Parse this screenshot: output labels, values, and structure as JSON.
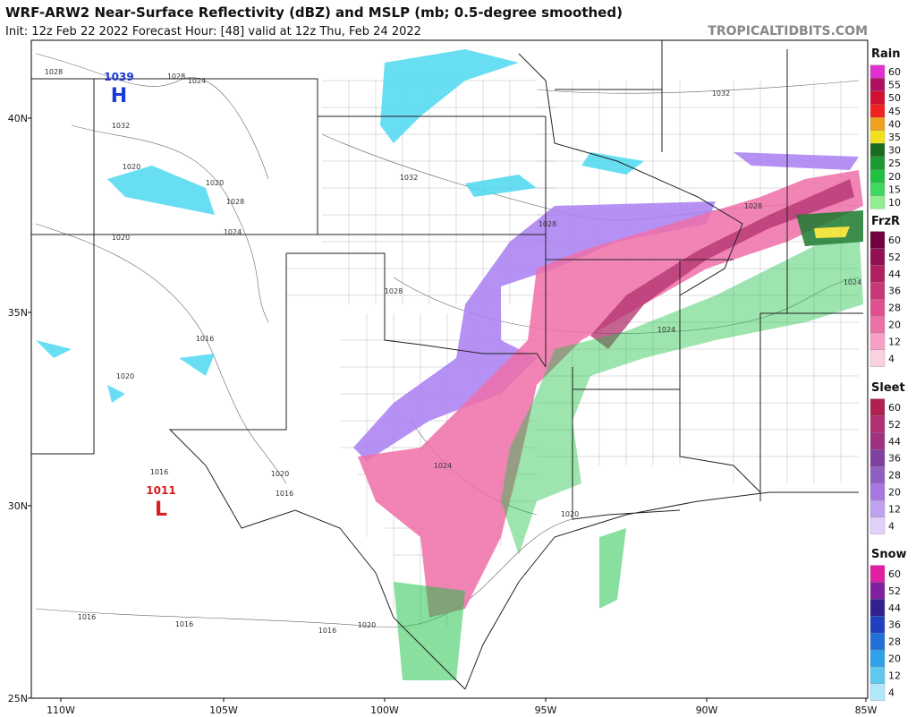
{
  "header": {
    "title": "WRF-ARW2 Near-Surface Reflectivity (dBZ) and MSLP (mb; 0.5-degree smoothed)",
    "subtitle": "Init: 12z Feb 22 2022   Forecast Hour: [48]   valid at 12z Thu, Feb 24 2022",
    "site": "TROPICALTIDBITS.COM"
  },
  "map": {
    "lat_labels": [
      "40N",
      "35N",
      "30N",
      "25N"
    ],
    "lon_labels": [
      "110W",
      "105W",
      "100W",
      "95W",
      "90W",
      "85W"
    ],
    "centers": [
      {
        "pressure": "1039",
        "symbol": "H",
        "color": "#1a3adb"
      },
      {
        "pressure": "1011",
        "symbol": "L",
        "color": "#d42020"
      }
    ],
    "isobar_labels": [
      "1028",
      "1028",
      "1024",
      "1032",
      "1020",
      "1020",
      "1028",
      "1024",
      "1020",
      "1016",
      "1020",
      "1016",
      "1020",
      "1016",
      "1016",
      "1016",
      "1016",
      "1020",
      "1032",
      "1028",
      "1032",
      "1028",
      "1028",
      "1024",
      "1024",
      "1024",
      "1020"
    ]
  },
  "legend": [
    {
      "title": "Rain",
      "ticks": [
        60,
        55,
        50,
        45,
        40,
        35,
        30,
        25,
        20,
        15,
        10
      ],
      "colors": [
        "#e030d0",
        "#b01060",
        "#d01030",
        "#f02020",
        "#f0a020",
        "#f0e020",
        "#1a6a20",
        "#1a9a30",
        "#20c040",
        "#40d860",
        "#90ee90"
      ]
    },
    {
      "title": "FrzR",
      "ticks": [
        60,
        52,
        44,
        36,
        28,
        20,
        12,
        4
      ],
      "colors": [
        "#700040",
        "#901050",
        "#b02060",
        "#c83878",
        "#e05090",
        "#ee70a8",
        "#f5a0c4",
        "#fbd0e0"
      ]
    },
    {
      "title": "Sleet",
      "ticks": [
        60,
        52,
        44,
        36,
        28,
        20,
        12,
        4
      ],
      "colors": [
        "#b02050",
        "#b03070",
        "#a03080",
        "#8040a0",
        "#9060c0",
        "#a878e0",
        "#c0a0f0",
        "#e0d0fa"
      ]
    },
    {
      "title": "Snow",
      "ticks": [
        60,
        52,
        44,
        36,
        28,
        20,
        12,
        4
      ],
      "colors": [
        "#e020a0",
        "#8020a0",
        "#302090",
        "#2040c0",
        "#2070d8",
        "#30a0e8",
        "#60c8f0",
        "#b0e8fa"
      ]
    }
  ]
}
